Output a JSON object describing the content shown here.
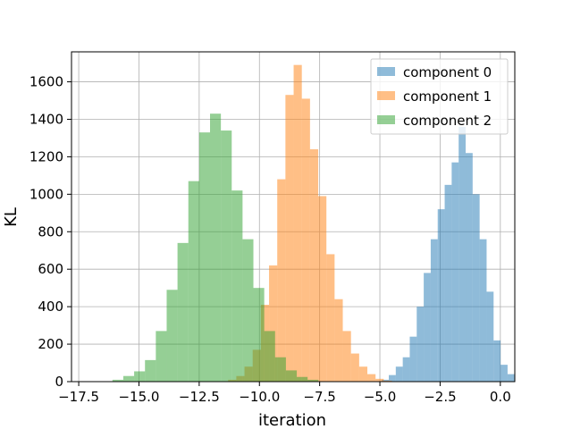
{
  "chart_data": {
    "type": "histogram",
    "title": "",
    "xlabel": "iteration",
    "ylabel": "KL",
    "xlim": [
      -17.8,
      0.6
    ],
    "ylim": [
      0,
      1760
    ],
    "grid": true,
    "legend_position": "top-right",
    "x_ticks": [
      -17.5,
      -15.0,
      -12.5,
      -10.0,
      -7.5,
      -5.0,
      -2.5,
      0.0
    ],
    "x_tick_labels": [
      "−17.5",
      "−15.0",
      "−12.5",
      "−10.0",
      "−7.5",
      "−5.0",
      "−2.5",
      "0.0"
    ],
    "y_ticks": [
      0,
      200,
      400,
      600,
      800,
      1000,
      1200,
      1400,
      1600
    ],
    "y_tick_labels": [
      "0",
      "200",
      "400",
      "600",
      "800",
      "1000",
      "1200",
      "1400",
      "1600"
    ],
    "series": [
      {
        "name": "component 0",
        "color": "#1f77b4",
        "bins": [
          {
            "x0": -4.92,
            "x1": -4.63,
            "count": 10
          },
          {
            "x0": -4.63,
            "x1": -4.34,
            "count": 35
          },
          {
            "x0": -4.34,
            "x1": -4.05,
            "count": 80
          },
          {
            "x0": -4.05,
            "x1": -3.76,
            "count": 130
          },
          {
            "x0": -3.76,
            "x1": -3.47,
            "count": 240
          },
          {
            "x0": -3.47,
            "x1": -3.18,
            "count": 400
          },
          {
            "x0": -3.18,
            "x1": -2.89,
            "count": 580
          },
          {
            "x0": -2.89,
            "x1": -2.6,
            "count": 760
          },
          {
            "x0": -2.6,
            "x1": -2.31,
            "count": 920
          },
          {
            "x0": -2.31,
            "x1": -2.02,
            "count": 1050
          },
          {
            "x0": -2.02,
            "x1": -1.73,
            "count": 1170
          },
          {
            "x0": -1.73,
            "x1": -1.44,
            "count": 1360
          },
          {
            "x0": -1.44,
            "x1": -1.15,
            "count": 1220
          },
          {
            "x0": -1.15,
            "x1": -0.86,
            "count": 1000
          },
          {
            "x0": -0.86,
            "x1": -0.57,
            "count": 760
          },
          {
            "x0": -0.57,
            "x1": -0.28,
            "count": 480
          },
          {
            "x0": -0.28,
            "x1": 0.01,
            "count": 220
          },
          {
            "x0": 0.01,
            "x1": 0.3,
            "count": 90
          },
          {
            "x0": 0.3,
            "x1": 0.59,
            "count": 40
          },
          {
            "x0": 0.59,
            "x1": 0.88,
            "count": 15
          }
        ]
      },
      {
        "name": "component 1",
        "color": "#ff7f0e",
        "bins": [
          {
            "x0": -11.3,
            "x1": -10.96,
            "count": 10
          },
          {
            "x0": -10.96,
            "x1": -10.62,
            "count": 30
          },
          {
            "x0": -10.62,
            "x1": -10.28,
            "count": 80
          },
          {
            "x0": -10.28,
            "x1": -9.94,
            "count": 170
          },
          {
            "x0": -9.94,
            "x1": -9.6,
            "count": 410
          },
          {
            "x0": -9.6,
            "x1": -9.26,
            "count": 620
          },
          {
            "x0": -9.26,
            "x1": -8.92,
            "count": 1080
          },
          {
            "x0": -8.92,
            "x1": -8.58,
            "count": 1530
          },
          {
            "x0": -8.58,
            "x1": -8.24,
            "count": 1690
          },
          {
            "x0": -8.24,
            "x1": -7.9,
            "count": 1510
          },
          {
            "x0": -7.9,
            "x1": -7.56,
            "count": 1240
          },
          {
            "x0": -7.56,
            "x1": -7.22,
            "count": 990
          },
          {
            "x0": -7.22,
            "x1": -6.88,
            "count": 680
          },
          {
            "x0": -6.88,
            "x1": -6.54,
            "count": 440
          },
          {
            "x0": -6.54,
            "x1": -6.2,
            "count": 270
          },
          {
            "x0": -6.2,
            "x1": -5.86,
            "count": 150
          },
          {
            "x0": -5.86,
            "x1": -5.52,
            "count": 80
          },
          {
            "x0": -5.52,
            "x1": -5.18,
            "count": 40
          },
          {
            "x0": -5.18,
            "x1": -4.84,
            "count": 15
          },
          {
            "x0": -4.84,
            "x1": -4.5,
            "count": 5
          }
        ]
      },
      {
        "name": "component 2",
        "color": "#2ca02c",
        "bins": [
          {
            "x0": -16.1,
            "x1": -15.65,
            "count": 10
          },
          {
            "x0": -15.65,
            "x1": -15.2,
            "count": 30
          },
          {
            "x0": -15.2,
            "x1": -14.75,
            "count": 55
          },
          {
            "x0": -14.75,
            "x1": -14.3,
            "count": 115
          },
          {
            "x0": -14.3,
            "x1": -13.85,
            "count": 270
          },
          {
            "x0": -13.85,
            "x1": -13.4,
            "count": 490
          },
          {
            "x0": -13.4,
            "x1": -12.95,
            "count": 740
          },
          {
            "x0": -12.95,
            "x1": -12.5,
            "count": 1070
          },
          {
            "x0": -12.5,
            "x1": -12.05,
            "count": 1330
          },
          {
            "x0": -12.05,
            "x1": -11.6,
            "count": 1430
          },
          {
            "x0": -11.6,
            "x1": -11.15,
            "count": 1340
          },
          {
            "x0": -11.15,
            "x1": -10.7,
            "count": 1020
          },
          {
            "x0": -10.7,
            "x1": -10.25,
            "count": 760
          },
          {
            "x0": -10.25,
            "x1": -9.8,
            "count": 500
          },
          {
            "x0": -9.8,
            "x1": -9.35,
            "count": 270
          },
          {
            "x0": -9.35,
            "x1": -8.9,
            "count": 130
          },
          {
            "x0": -8.9,
            "x1": -8.45,
            "count": 60
          },
          {
            "x0": -8.45,
            "x1": -8.0,
            "count": 25
          },
          {
            "x0": -8.0,
            "x1": -7.55,
            "count": 10
          }
        ]
      }
    ]
  }
}
